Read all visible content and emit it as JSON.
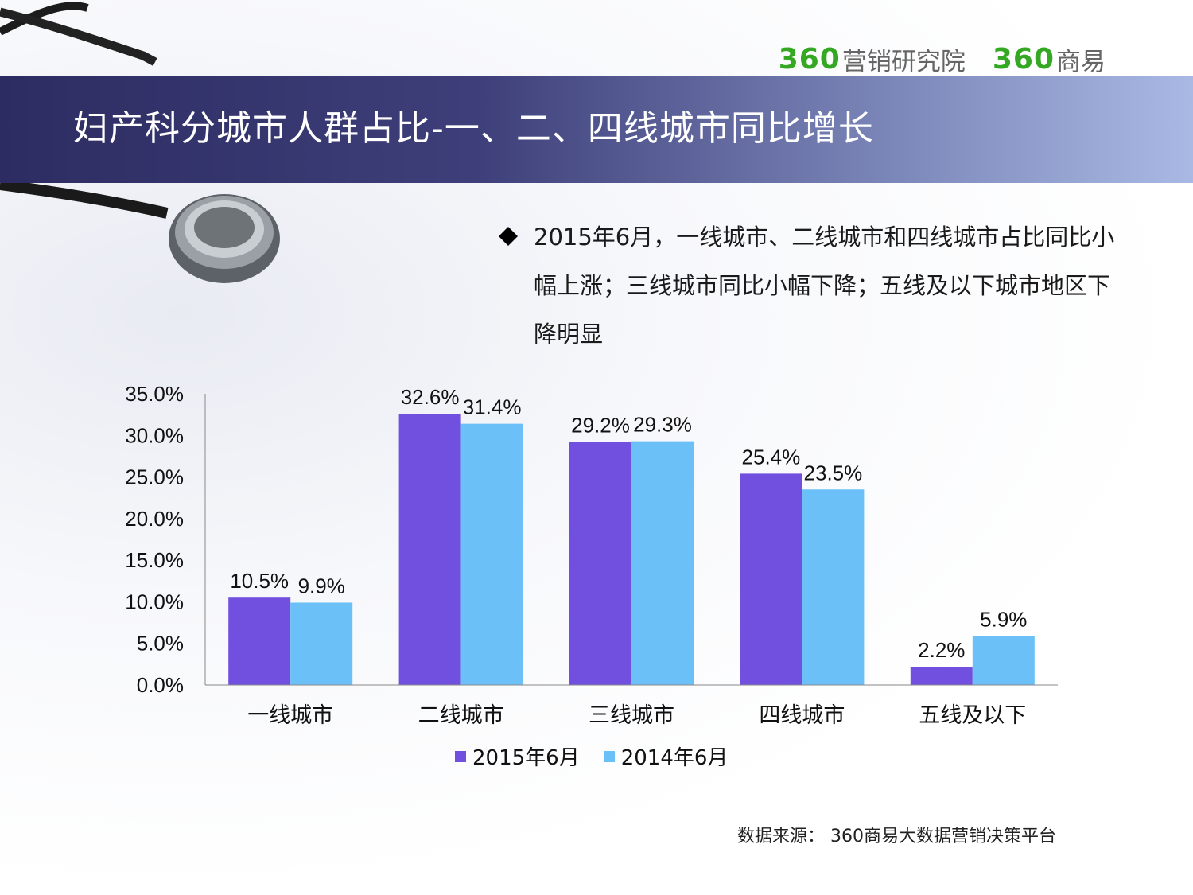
{
  "header": {
    "logo_left_num": "360",
    "logo_left_text": "营销研究院",
    "logo_right_num": "360",
    "logo_right_text": "商易",
    "title": "妇产科分城市人群占比-一、二、四线城市同比增长"
  },
  "bullet": {
    "icon": "diamond-bullet-icon",
    "text": "2015年6月，一线城市、二线城市和四线城市占比同比小幅上涨；三线城市同比小幅下降；五线及以下城市地区下降明显"
  },
  "colors": {
    "series_2015": "#7150e0",
    "series_2014": "#6bc0f8",
    "brand_green": "#34a823"
  },
  "chart_data": {
    "type": "bar",
    "categories": [
      "一线城市",
      "二线城市",
      "三线城市",
      "四线城市",
      "五线及以下"
    ],
    "series": [
      {
        "name": "2015年6月",
        "values": [
          10.5,
          32.6,
          29.2,
          25.4,
          2.2
        ],
        "labels": [
          "10.5%",
          "32.6%",
          "29.2%",
          "25.4%",
          "2.2%"
        ]
      },
      {
        "name": "2014年6月",
        "values": [
          9.9,
          31.4,
          29.3,
          23.5,
          5.9
        ],
        "labels": [
          "9.9%",
          "31.4%",
          "29.3%",
          "23.5%",
          "5.9%"
        ]
      }
    ],
    "yticks": [
      "0.0%",
      "5.0%",
      "10.0%",
      "15.0%",
      "20.0%",
      "25.0%",
      "30.0%",
      "35.0%"
    ],
    "ylim": [
      0,
      35
    ],
    "legend_position": "bottom",
    "grid": false
  },
  "source": "数据来源：  360商易大数据营销决策平台"
}
